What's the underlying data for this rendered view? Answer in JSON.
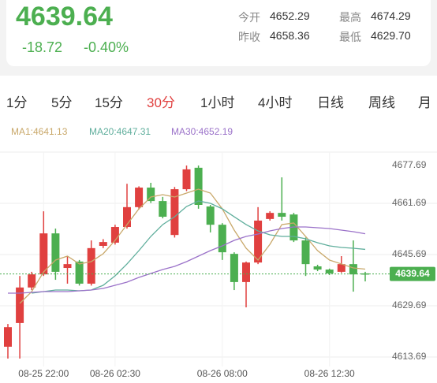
{
  "header": {
    "price": "4639.64",
    "change": "-18.72",
    "change_pct": "-0.40%",
    "stats": [
      {
        "label": "今开",
        "value": "4652.29"
      },
      {
        "label": "最高",
        "value": "4674.29"
      },
      {
        "label": "昨收",
        "value": "4658.36"
      },
      {
        "label": "最低",
        "value": "4629.70"
      }
    ]
  },
  "tabs": [
    {
      "label": "1分"
    },
    {
      "label": "5分"
    },
    {
      "label": "15分"
    },
    {
      "label": "30分",
      "active": true
    },
    {
      "label": "1小时"
    },
    {
      "label": "4小时"
    },
    {
      "label": "日线"
    },
    {
      "label": "周线"
    },
    {
      "label": "月"
    }
  ],
  "chart_data": {
    "type": "candlestick",
    "up_color": "#e0403f",
    "down_color": "#4caf50",
    "categories": [
      null,
      null,
      null,
      "08-25 22:00",
      null,
      null,
      null,
      null,
      null,
      "08-26 02:30",
      null,
      null,
      null,
      null,
      null,
      null,
      null,
      null,
      "08-26 08:00",
      null,
      null,
      null,
      null,
      null,
      null,
      null,
      null,
      "08-26 12:30",
      null,
      null,
      null
    ],
    "open": [
      4616.9,
      4624.3,
      4635.4,
      4639.5,
      4652.3,
      4641.5,
      4643.5,
      4636.6,
      4648.4,
      4649.4,
      4654.3,
      4660.5,
      4666.6,
      4662.4,
      4651.8,
      4666.1,
      4672.8,
      4660.7,
      4655.0,
      4645.9,
      4637.1,
      4643.2,
      4656.8,
      4658.7,
      4658.2,
      4650.1,
      4642.0,
      4641.0,
      4640.3,
      4642.7,
      4639.8
    ],
    "high": [
      4624.0,
      4639.0,
      4640.3,
      4659.2,
      4653.8,
      4645.2,
      4644.0,
      4650.1,
      4650.5,
      4655.0,
      4667.8,
      4667.0,
      4668.1,
      4663.7,
      4666.8,
      4673.5,
      4673.5,
      4661.2,
      4655.5,
      4646.4,
      4643.5,
      4660.5,
      4659.2,
      4669.8,
      4658.7,
      4651.0,
      4642.5,
      4641.3,
      4645.2,
      4650.1,
      4640.3
    ],
    "low": [
      4613.2,
      4613.2,
      4634.6,
      4639.0,
      4637.8,
      4636.6,
      4636.0,
      4636.0,
      4647.7,
      4648.8,
      4653.8,
      4659.8,
      4661.8,
      4657.0,
      4651.0,
      4665.5,
      4660.0,
      4652.6,
      4644.0,
      4634.6,
      4629.2,
      4642.7,
      4656.3,
      4656.3,
      4649.6,
      4639.0,
      4640.5,
      4639.3,
      4640.0,
      4634.1,
      4637.3
    ],
    "close": [
      4623.0,
      4635.4,
      4639.5,
      4652.3,
      4640.3,
      4642.7,
      4636.6,
      4647.7,
      4649.6,
      4654.3,
      4660.5,
      4666.6,
      4662.4,
      4657.5,
      4666.1,
      4672.3,
      4661.2,
      4655.0,
      4646.4,
      4637.1,
      4643.2,
      4656.3,
      4658.7,
      4657.5,
      4650.1,
      4642.7,
      4641.0,
      4639.8,
      4642.7,
      4639.5,
      4639.64
    ],
    "series": [
      {
        "name": "MA1:4641.13",
        "color": "#c9a86a",
        "values": [
          null,
          4630.43,
          4634.12,
          4640.28,
          4643.97,
          4645.2,
          4642.75,
          4643.48,
          4645.94,
          4650.12,
          4655.05,
          4659.97,
          4663.66,
          4664.4,
          4663.66,
          4664.89,
          4666.12,
          4664.89,
          4659.97,
          4653.32,
          4647.66,
          4643.97,
          4648.89,
          4655.05,
          4655.54,
          4651.35,
          4646.92,
          4643.97,
          4642.75,
          4641.51,
          4641.13
        ]
      },
      {
        "name": "MA20:4647.31",
        "color": "#5fae9c",
        "values": [
          null,
          null,
          4633.63,
          4634.12,
          4634.61,
          4634.61,
          4634.37,
          4634.61,
          4636.09,
          4639.04,
          4642.75,
          4646.92,
          4651.35,
          4655.05,
          4657.5,
          4660.7,
          4662.43,
          4661.69,
          4659.97,
          4657.5,
          4655.05,
          4653.07,
          4651.85,
          4651.35,
          4651.35,
          4650.61,
          4649.38,
          4648.4,
          4647.9,
          4647.66,
          4647.31
        ]
      },
      {
        "name": "MA30:4652.19",
        "color": "#9b72c9",
        "values": [
          4633.63,
          4633.63,
          4633.87,
          4634.12,
          4634.12,
          4634.12,
          4634.37,
          4634.61,
          4635.11,
          4636.09,
          4637.07,
          4638.55,
          4639.78,
          4641.01,
          4642.01,
          4643.48,
          4645.2,
          4646.92,
          4648.4,
          4650.12,
          4651.35,
          4652.09,
          4653.07,
          4653.81,
          4654.3,
          4654.3,
          4654.06,
          4653.81,
          4653.32,
          4652.83,
          4652.19
        ]
      }
    ],
    "current_price": 4639.64,
    "ylim": [
      4613.69,
      4677.69
    ],
    "yticks": [
      4677.69,
      4661.69,
      4645.69,
      4629.69,
      4613.69
    ],
    "grid": true
  }
}
